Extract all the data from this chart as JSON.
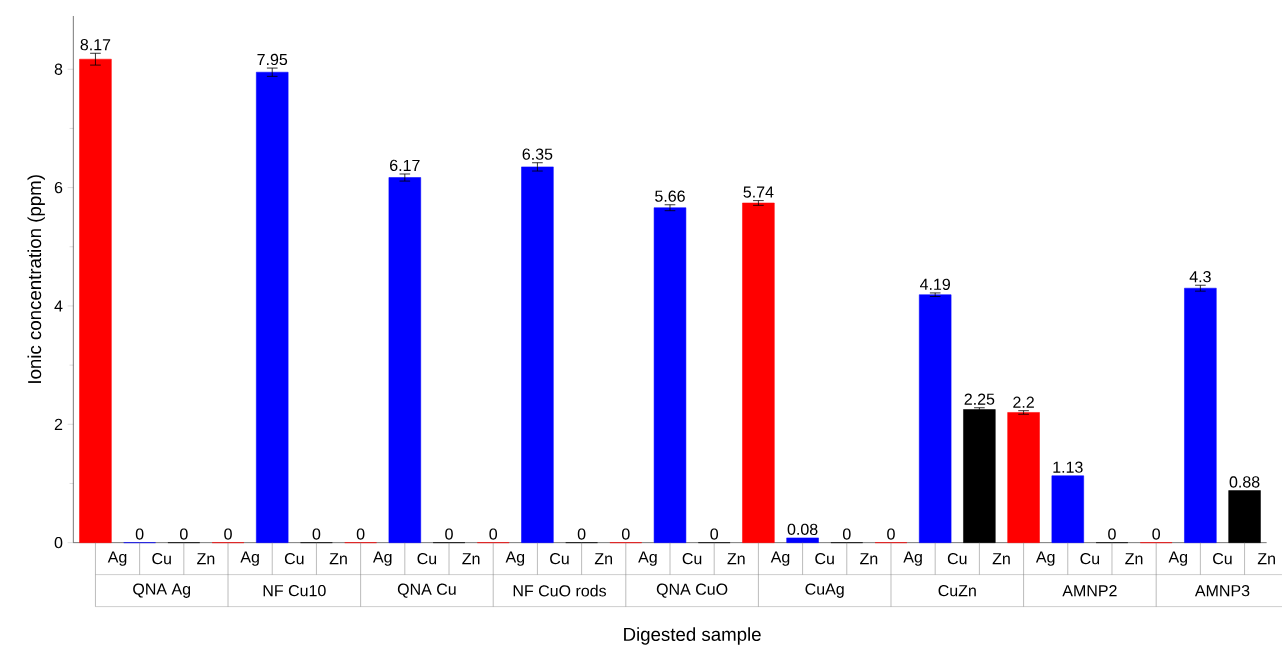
{
  "chart_data": {
    "type": "bar",
    "xlabel": "Digested sample",
    "ylabel": "Ionic concentration (ppm)",
    "categories": [
      "QNA Ag",
      "NF Cu10",
      "QNA Cu",
      "NF CuO rods",
      "QNA CuO",
      "CuAg",
      "CuZn",
      "AMNP2",
      "AMNP3"
    ],
    "series": [
      {
        "name": "Ag",
        "color": "#ff0000",
        "values": [
          8.17,
          0,
          0,
          0,
          0,
          5.74,
          0,
          2.2,
          0
        ],
        "errors": [
          0.1,
          null,
          null,
          null,
          null,
          0.04,
          null,
          0.03,
          null
        ]
      },
      {
        "name": "Cu",
        "color": "#0000ff",
        "values": [
          0,
          7.95,
          6.17,
          6.35,
          5.66,
          0.08,
          4.19,
          1.13,
          4.3
        ],
        "errors": [
          null,
          0.07,
          0.06,
          0.07,
          0.05,
          null,
          0.03,
          null,
          0.05
        ]
      },
      {
        "name": "Zn",
        "color": "#000000",
        "values": [
          0,
          0,
          0,
          0,
          0,
          0,
          2.25,
          0,
          0.88
        ],
        "errors": [
          null,
          null,
          null,
          null,
          null,
          null,
          0.03,
          null,
          null
        ]
      }
    ],
    "data_labels": true,
    "legend": "bottom",
    "ylim": [
      0,
      8.9
    ],
    "yticks": [
      0,
      2,
      4,
      6,
      8
    ]
  }
}
